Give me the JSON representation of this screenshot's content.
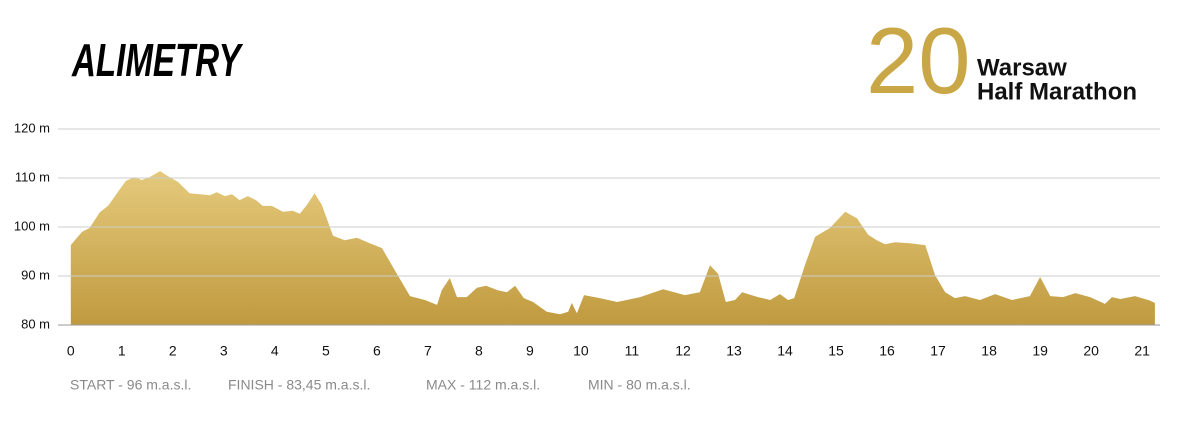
{
  "chart_data": {
    "type": "area",
    "title": "ALIMETRY",
    "logo_number": "20",
    "logo_lines": [
      "Warsaw",
      "Half Marathon"
    ],
    "color_top": "#e5ca7c",
    "color_bottom": "#c09a3f",
    "grid": true,
    "x": [
      0,
      0.08,
      0.22,
      0.37,
      0.57,
      0.73,
      0.92,
      1.08,
      1.25,
      1.39,
      1.55,
      1.75,
      1.9,
      2.1,
      2.33,
      2.53,
      2.73,
      2.86,
      3.02,
      3.16,
      3.31,
      3.47,
      3.63,
      3.76,
      3.94,
      4.16,
      4.35,
      4.49,
      4.63,
      4.78,
      4.92,
      5.14,
      5.37,
      5.61,
      5.86,
      6.1,
      6.35,
      6.65,
      6.94,
      7.18,
      7.27,
      7.43,
      7.57,
      7.76,
      7.96,
      8.14,
      8.37,
      8.55,
      8.71,
      8.88,
      9.06,
      9.33,
      9.59,
      9.75,
      9.82,
      9.92,
      10.06,
      10.37,
      10.71,
      11.16,
      11.61,
      12.04,
      12.33,
      12.53,
      12.69,
      12.84,
      13.02,
      13.16,
      13.47,
      13.71,
      13.9,
      14.06,
      14.18,
      14.39,
      14.59,
      14.88,
      15.18,
      15.41,
      15.63,
      15.8,
      15.96,
      16.16,
      16.45,
      16.75,
      16.94,
      17.14,
      17.33,
      17.53,
      17.82,
      18.12,
      18.45,
      18.8,
      19.0,
      19.2,
      19.45,
      19.69,
      19.98,
      20.27,
      20.41,
      20.57,
      20.86,
      21.12,
      21.25
    ],
    "values": [
      96.3,
      97.3,
      99,
      99.8,
      103,
      104.3,
      107.1,
      109.4,
      110.2,
      109.6,
      110.2,
      111.4,
      110.4,
      109.2,
      106.9,
      106.7,
      106.5,
      107.1,
      106.3,
      106.7,
      105.5,
      106.3,
      105.5,
      104.3,
      104.3,
      103.1,
      103.3,
      102.7,
      104.5,
      106.9,
      104.5,
      98.2,
      97.3,
      97.8,
      96.7,
      95.7,
      91.2,
      85.9,
      85.1,
      84.1,
      87.1,
      89.6,
      85.7,
      85.7,
      87.6,
      88,
      87.1,
      86.7,
      88,
      85.5,
      84.7,
      82.7,
      82.2,
      82.7,
      84.5,
      82.4,
      86.1,
      85.5,
      84.7,
      85.7,
      87.3,
      86.1,
      86.7,
      92.2,
      90.4,
      84.7,
      85.1,
      86.7,
      85.7,
      85.1,
      86.3,
      85.1,
      85.5,
      92.2,
      98,
      99.8,
      103.1,
      101.8,
      98.4,
      97.3,
      96.5,
      96.9,
      96.7,
      96.3,
      90.2,
      86.7,
      85.5,
      85.9,
      85.1,
      86.3,
      85.1,
      85.9,
      89.8,
      85.9,
      85.7,
      86.5,
      85.7,
      84.3,
      85.7,
      85.3,
      85.9,
      85.1,
      84.5
    ],
    "xlim": [
      -0.25,
      21.35
    ],
    "xticks": [
      0,
      1,
      2,
      3,
      4,
      5,
      6,
      7,
      8,
      9,
      10,
      11,
      12,
      13,
      14,
      15,
      16,
      17,
      18,
      19,
      20,
      21
    ],
    "ylim": [
      80,
      120
    ],
    "yticks": [
      {
        "value": 80,
        "label": "80 m"
      },
      {
        "value": 90,
        "label": "90 m"
      },
      {
        "value": 100,
        "label": "100 m"
      },
      {
        "value": 110,
        "label": "110 m"
      },
      {
        "value": 120,
        "label": "120 m"
      }
    ],
    "annotations": [
      "START - 96 m.a.s.l.",
      "FINISH - 83,45 m.a.s.l.",
      "MAX - 112 m.a.s.l.",
      "MIN - 80 m.a.s.l."
    ]
  }
}
